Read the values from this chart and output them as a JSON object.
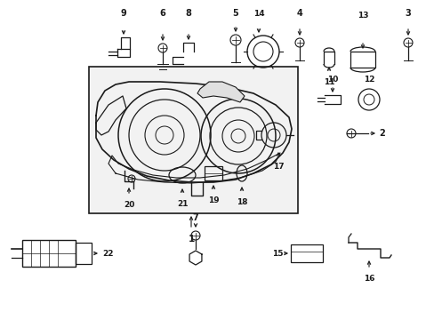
{
  "bg_color": "#ffffff",
  "line_color": "#1a1a1a",
  "box_bg": "#f5f5f5",
  "figsize": [
    4.89,
    3.6
  ],
  "dpi": 100
}
